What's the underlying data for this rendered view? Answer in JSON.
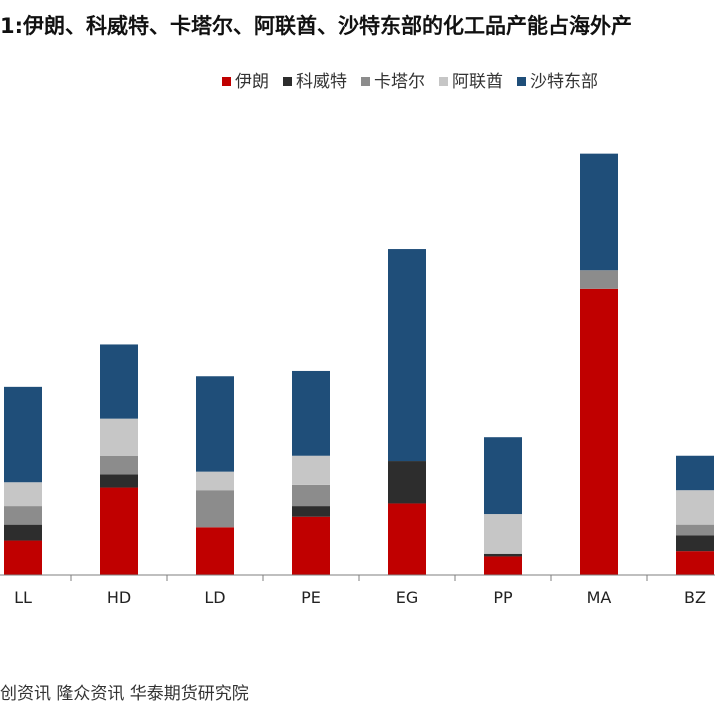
{
  "title": "1:伊朗、科威特、卡塔尔、阿联酋、沙特东部的化工品产能占海外产",
  "source": "创资讯  隆众资讯  华泰期货研究院",
  "colors": {
    "伊朗": "#c00000",
    "科威特": "#2d2d2d",
    "卡塔尔": "#8c8c8c",
    "阿联酋": "#c6c6c6",
    "沙特东部": "#1f4e79"
  },
  "chart_data": {
    "type": "bar",
    "stacked": true,
    "categories": [
      "LL",
      "HD",
      "LD",
      "PE",
      "EG",
      "PP",
      "MA",
      "BZ"
    ],
    "series": [
      {
        "name": "伊朗",
        "values": [
          6.5,
          16.5,
          9,
          11,
          13.5,
          3.5,
          54,
          4.5
        ]
      },
      {
        "name": "科威特",
        "values": [
          3,
          2.5,
          0,
          2,
          8,
          0.5,
          0,
          3
        ]
      },
      {
        "name": "卡塔尔",
        "values": [
          3.5,
          3.5,
          7,
          4,
          0,
          0,
          3.5,
          2
        ]
      },
      {
        "name": "阿联酋",
        "values": [
          4.5,
          7,
          3.5,
          5.5,
          0,
          7.5,
          0,
          6.5
        ]
      },
      {
        "name": "沙特东部",
        "values": [
          18,
          14,
          18,
          16,
          40,
          14.5,
          22,
          6.5
        ]
      }
    ],
    "legend_position": "top-right",
    "grid": false
  }
}
